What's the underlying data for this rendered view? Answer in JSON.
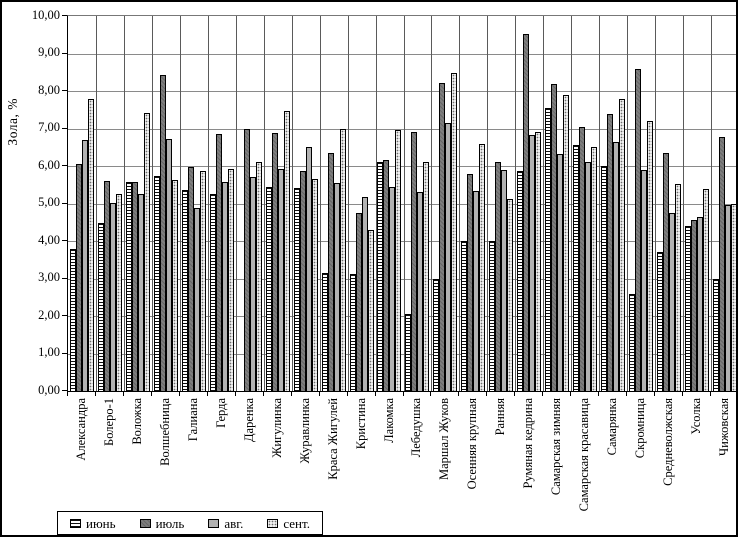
{
  "y_axis": {
    "title": "Зола, %",
    "tick_labels": [
      "0,00",
      "1,00",
      "2,00",
      "3,00",
      "4,00",
      "5,00",
      "6,00",
      "7,00",
      "8,00",
      "9,00",
      "10,00"
    ]
  },
  "legend": {
    "items": [
      "июнь",
      "июль",
      "авг.",
      "сент."
    ]
  },
  "colors": {
    "bar_border": "#000000",
    "july_fill": "#7e7e7e",
    "august_fill": "#b2b2b2",
    "september_fill": "#efefef",
    "grid_horizontal": "#8a8a8a",
    "grid_vertical": "#5a5a5a"
  },
  "chart_data": {
    "type": "bar",
    "title": "",
    "xlabel": "",
    "ylabel": "Зола, %",
    "ylim": [
      0,
      10
    ],
    "ytick_step": 1,
    "grid": true,
    "legend_position": "bottom-left",
    "bar_patterns": {
      "июнь": "h-stripes",
      "июль": "dark-solid",
      "авг.": "light-solid",
      "сент.": "dots"
    },
    "categories": [
      "Александра",
      "Болеро-1",
      "Воложка",
      "Волшебница",
      "Галиана",
      "Герда",
      "Даренка",
      "Жигулинка",
      "Журавлинка",
      "Краса Жигулей",
      "Кристина",
      "Лакомка",
      "Лебедушка",
      "Маршал Жуков",
      "Осенняя крупная",
      "Ранняя",
      "Румяная кедрина",
      "Самарская зимняя",
      "Самарская красавица",
      "Самарянка",
      "Скромница",
      "Средневолжская",
      "Усолка",
      "Чижовская"
    ],
    "series": [
      {
        "name": "июнь",
        "pattern": "h-stripes",
        "values": [
          3.78,
          4.48,
          5.58,
          5.74,
          5.35,
          5.25,
          null,
          5.45,
          5.42,
          3.15,
          3.12,
          6.1,
          2.05,
          3.0,
          4.0,
          4.0,
          5.88,
          7.55,
          6.57,
          6.0,
          2.58,
          3.72,
          4.4,
          3.0
        ]
      },
      {
        "name": "июль",
        "pattern": "dark-solid",
        "values": [
          6.05,
          5.6,
          5.58,
          8.44,
          5.97,
          6.86,
          6.98,
          6.88,
          5.87,
          6.36,
          4.75,
          6.15,
          6.9,
          8.22,
          5.79,
          6.1,
          9.51,
          8.18,
          7.05,
          7.4,
          8.58,
          6.36,
          4.55,
          6.78
        ]
      },
      {
        "name": "авг.",
        "pattern": "light-solid",
        "values": [
          6.7,
          5.02,
          5.25,
          6.73,
          4.88,
          5.58,
          5.72,
          5.93,
          6.5,
          5.54,
          5.18,
          5.45,
          5.3,
          7.14,
          5.34,
          5.9,
          6.82,
          6.33,
          6.1,
          6.64,
          5.89,
          4.74,
          4.65,
          4.95
        ]
      },
      {
        "name": "сент.",
        "pattern": "dots",
        "values": [
          7.8,
          5.26,
          7.42,
          5.63,
          5.87,
          5.93,
          6.1,
          7.46,
          5.66,
          6.98,
          4.3,
          6.95,
          6.12,
          8.49,
          6.6,
          5.12,
          6.92,
          7.9,
          6.51,
          7.78,
          7.21,
          5.51,
          5.39,
          4.98
        ]
      }
    ]
  }
}
